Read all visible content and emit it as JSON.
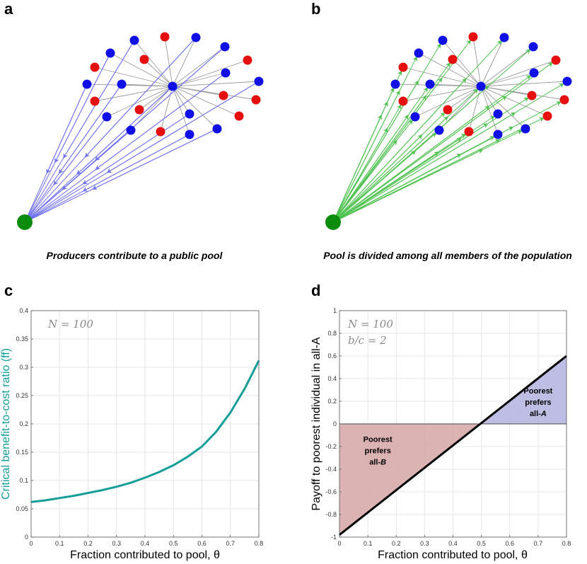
{
  "panels": {
    "a": {
      "label": "a",
      "caption": "Producers contribute to a public pool",
      "colors": {
        "producer": "#1010e6",
        "nonproducer": "#e60f10",
        "pool": "#0c8c0c",
        "arrow": "#6f6ff0"
      }
    },
    "b": {
      "label": "b",
      "caption": "Pool is divided among all members of the population",
      "colors": {
        "producer": "#1010e6",
        "nonproducer": "#e60f10",
        "pool": "#0c8c0c",
        "arrow": "#4fc24f"
      }
    }
  },
  "chart_data": [
    {
      "id": "c",
      "panel_label": "c",
      "type": "line",
      "xlabel": "Fraction contributed to pool, θ",
      "ylabel": "Critical benefit-to-cost ratio (ff)",
      "ylabel_color": "#149e97",
      "annotation": "N = 100",
      "xlim": [
        0,
        0.8
      ],
      "ylim": [
        0,
        0.4
      ],
      "xticks": [
        0,
        0.1,
        0.2,
        0.3,
        0.4,
        0.5,
        0.6,
        0.7,
        0.8
      ],
      "xtick_labels": [
        "0",
        "0.1",
        "0.2",
        "0.3",
        "0.4",
        "0.5",
        "0.6",
        "0.7",
        "0.8"
      ],
      "yticks": [
        0,
        0.05,
        0.1,
        0.15,
        0.2,
        0.25,
        0.3,
        0.35,
        0.4
      ],
      "ytick_labels": [
        "0",
        "0.05",
        "0.1",
        "0.15",
        "0.2",
        "0.25",
        "0.3",
        "0.35",
        "0.4"
      ],
      "grid": true,
      "series": [
        {
          "name": "critical ratio",
          "color": "#149e97",
          "x": [
            0,
            0.05,
            0.1,
            0.15,
            0.2,
            0.25,
            0.3,
            0.35,
            0.4,
            0.45,
            0.5,
            0.55,
            0.6,
            0.65,
            0.7,
            0.75,
            0.8
          ],
          "y": [
            0.062,
            0.065,
            0.069,
            0.073,
            0.078,
            0.083,
            0.089,
            0.096,
            0.105,
            0.115,
            0.127,
            0.142,
            0.16,
            0.186,
            0.22,
            0.262,
            0.312
          ]
        }
      ]
    },
    {
      "id": "d",
      "panel_label": "d",
      "type": "line",
      "xlabel": "Fraction contributed to pool, θ",
      "ylabel": "Payoff to poorest individual in all-A",
      "annotation": "N = 100",
      "annotation2": "b/c = 2",
      "xlim": [
        0,
        0.8
      ],
      "ylim": [
        -1,
        1
      ],
      "xticks": [
        0,
        0.1,
        0.2,
        0.3,
        0.4,
        0.5,
        0.6,
        0.7,
        0.8
      ],
      "xtick_labels": [
        "0",
        "0.1",
        "0.2",
        "0.3",
        "0.4",
        "0.5",
        "0.6",
        "0.7",
        "0.8"
      ],
      "yticks": [
        -1,
        -0.8,
        -0.6,
        -0.4,
        -0.2,
        0,
        0.2,
        0.4,
        0.6,
        0.8,
        1
      ],
      "ytick_labels": [
        "-1",
        "-0.8",
        "-0.6",
        "-0.4",
        "-0.2",
        "0",
        "0.2",
        "0.4",
        "0.6",
        "0.8",
        "1"
      ],
      "grid": true,
      "series": [
        {
          "name": "payoff",
          "color": "#000000",
          "x": [
            0,
            0.8
          ],
          "y": [
            -0.98,
            0.6
          ]
        }
      ],
      "regions": [
        {
          "name": "poorest-prefers-all-B",
          "color": "#d6a6a6",
          "lines": [
            "Poorest",
            "prefers",
            "all-B"
          ],
          "x_range": [
            0,
            0.5
          ]
        },
        {
          "name": "poorest-prefers-all-A",
          "color": "#b3b3e0",
          "lines": [
            "Poorest",
            "prefers",
            "all-A"
          ],
          "x_range": [
            0.5,
            0.8
          ]
        }
      ]
    }
  ]
}
